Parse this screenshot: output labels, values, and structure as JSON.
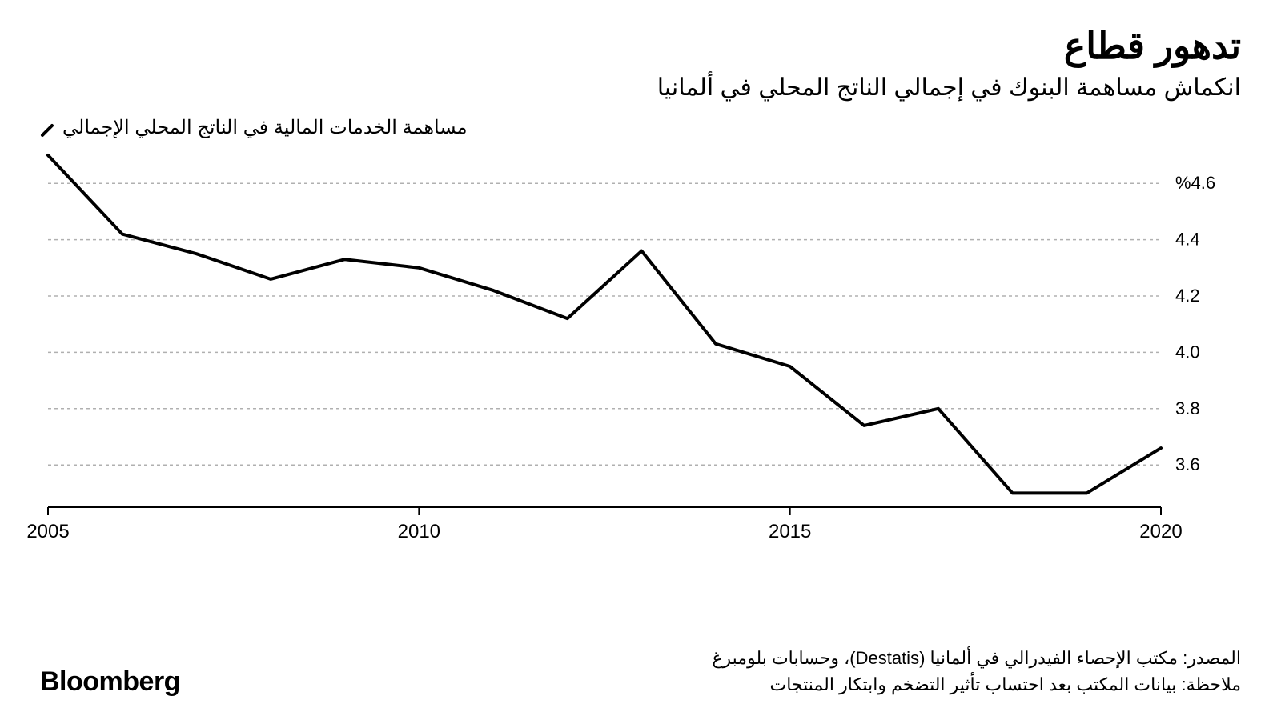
{
  "title": "تدهور قطاع",
  "subtitle": "انكماش مساهمة البنوك في إجمالي الناتج المحلي في ألمانيا",
  "legend": {
    "label": "مساهمة الخدمات المالية في الناتج المحلي الإجمالي"
  },
  "brand": "Bloomberg",
  "source_line": "المصدر: مكتب الإحصاء الفيدرالي في ألمانيا (Destatis)، وحسابات بلومبرغ",
  "note_line": "ملاحظة: بيانات المكتب بعد احتساب تأثير التضخم وابتكار المنتجات",
  "chart": {
    "type": "line",
    "line_color": "#000000",
    "line_width": 4,
    "grid_color": "#b0b0b0",
    "grid_dash": "4 4",
    "axis_color": "#000000",
    "background_color": "#ffffff",
    "font_family": "Arial",
    "tick_fontsize": 22,
    "title_fontsize": 46,
    "subtitle_fontsize": 30,
    "legend_fontsize": 24,
    "x": {
      "min": 2005,
      "max": 2020,
      "ticks": [
        2005,
        2010,
        2015,
        2020
      ]
    },
    "y": {
      "min": 3.45,
      "max": 4.7,
      "ticks": [
        3.6,
        3.8,
        4.0,
        4.2,
        4.4,
        4.6
      ],
      "tick_labels": [
        "3.6",
        "3.8",
        "4.0",
        "4.2",
        "4.4",
        "%4.6"
      ]
    },
    "series": [
      {
        "year": 2005,
        "value": 4.7
      },
      {
        "year": 2006,
        "value": 4.42
      },
      {
        "year": 2007,
        "value": 4.35
      },
      {
        "year": 2008,
        "value": 4.26
      },
      {
        "year": 2009,
        "value": 4.33
      },
      {
        "year": 2010,
        "value": 4.3
      },
      {
        "year": 2011,
        "value": 4.22
      },
      {
        "year": 2012,
        "value": 4.12
      },
      {
        "year": 2013,
        "value": 4.36
      },
      {
        "year": 2014,
        "value": 4.03
      },
      {
        "year": 2015,
        "value": 3.95
      },
      {
        "year": 2016,
        "value": 3.74
      },
      {
        "year": 2017,
        "value": 3.8
      },
      {
        "year": 2018,
        "value": 3.5
      },
      {
        "year": 2019,
        "value": 3.5
      },
      {
        "year": 2020,
        "value": 3.66
      }
    ]
  }
}
